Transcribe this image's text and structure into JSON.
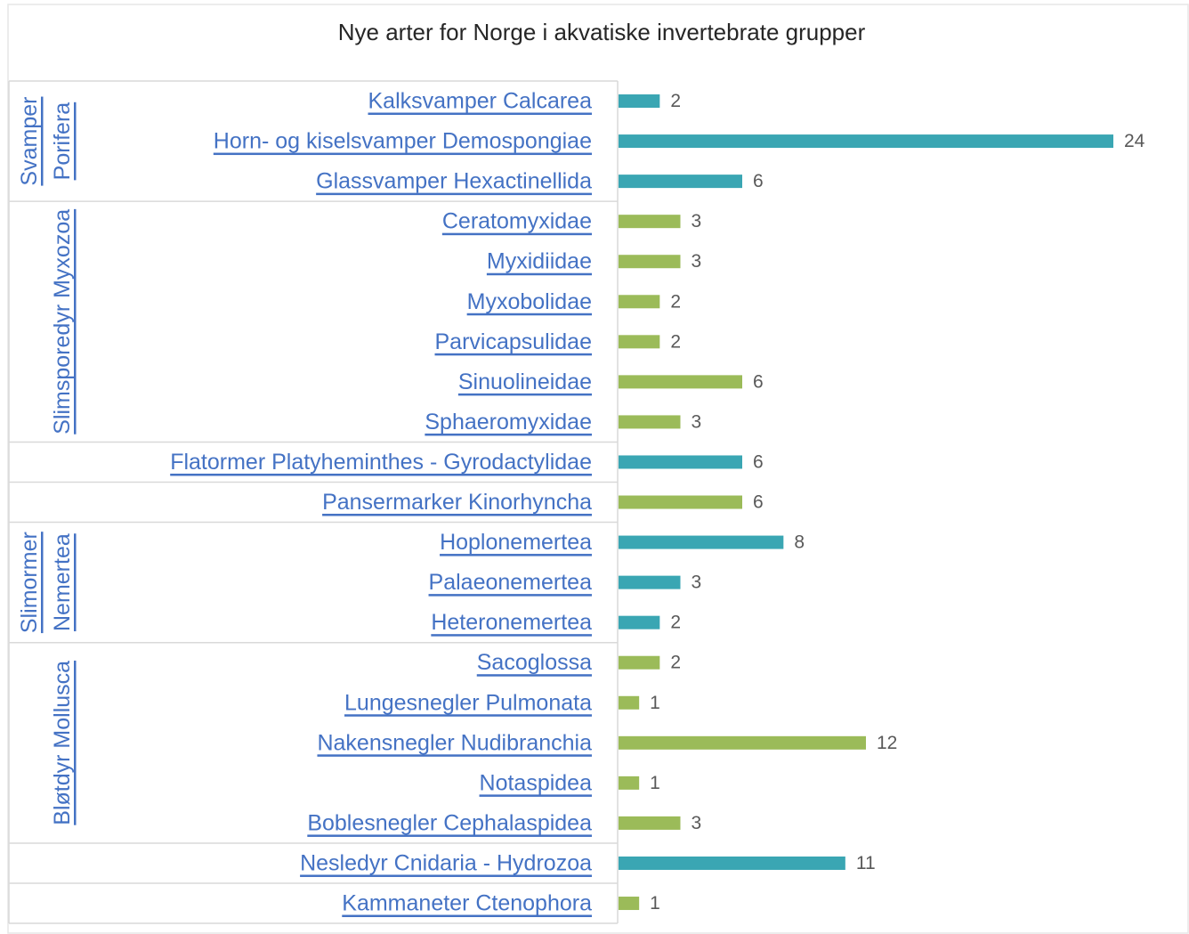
{
  "chart_data": {
    "type": "bar",
    "orientation": "horizontal",
    "title": "Nye arter for Norge i akvatiske invertebrate grupper",
    "colors": {
      "teal": "#3aa6b3",
      "green": "#9bbb59",
      "label": "#4472c4",
      "grid": "#d9d9d9"
    },
    "categories": [
      "Kalksvamper Calcarea",
      "Horn- og kiselsvamper Demospongiae",
      "Glassvamper Hexactinellida",
      "Ceratomyxidae",
      "Myxidiidae",
      "Myxobolidae",
      "Parvicapsulidae",
      "Sinuolineidae",
      "Sphaeromyxidae",
      "Flatormer Platyheminthes - Gyrodactylidae",
      "Pansermarker Kinorhyncha",
      "Hoplonemertea",
      "Palaeonemertea",
      "Heteronemertea",
      "Sacoglossa",
      "Lungesnegler Pulmonata",
      "Nakensnegler Nudibranchia",
      "Notaspidea",
      "Boblesnegler Cephalaspidea",
      "Nesledyr Cnidaria - Hydrozoa",
      "Kammaneter Ctenophora"
    ],
    "values": [
      2,
      24,
      6,
      3,
      3,
      2,
      2,
      6,
      3,
      6,
      6,
      8,
      3,
      2,
      2,
      1,
      12,
      1,
      3,
      11,
      1
    ],
    "bar_colors": [
      "teal",
      "teal",
      "teal",
      "green",
      "green",
      "green",
      "green",
      "green",
      "green",
      "teal",
      "green",
      "teal",
      "teal",
      "teal",
      "green",
      "green",
      "green",
      "green",
      "green",
      "teal",
      "green"
    ],
    "groups": [
      {
        "lines": [
          "Svamper",
          "Porifera"
        ],
        "first": 0,
        "last": 2
      },
      {
        "lines": [
          "Slimsporedyr Myxozoa"
        ],
        "first": 3,
        "last": 8
      },
      {
        "lines": [],
        "first": 9,
        "last": 9
      },
      {
        "lines": [],
        "first": 10,
        "last": 10
      },
      {
        "lines": [
          "Slimormer",
          "Nemertea"
        ],
        "first": 11,
        "last": 13
      },
      {
        "lines": [
          "Bløtdyr Mollusca"
        ],
        "first": 14,
        "last": 18
      },
      {
        "lines": [],
        "first": 19,
        "last": 19
      },
      {
        "lines": [],
        "first": 20,
        "last": 20
      }
    ],
    "xlim": [
      0,
      24
    ]
  }
}
